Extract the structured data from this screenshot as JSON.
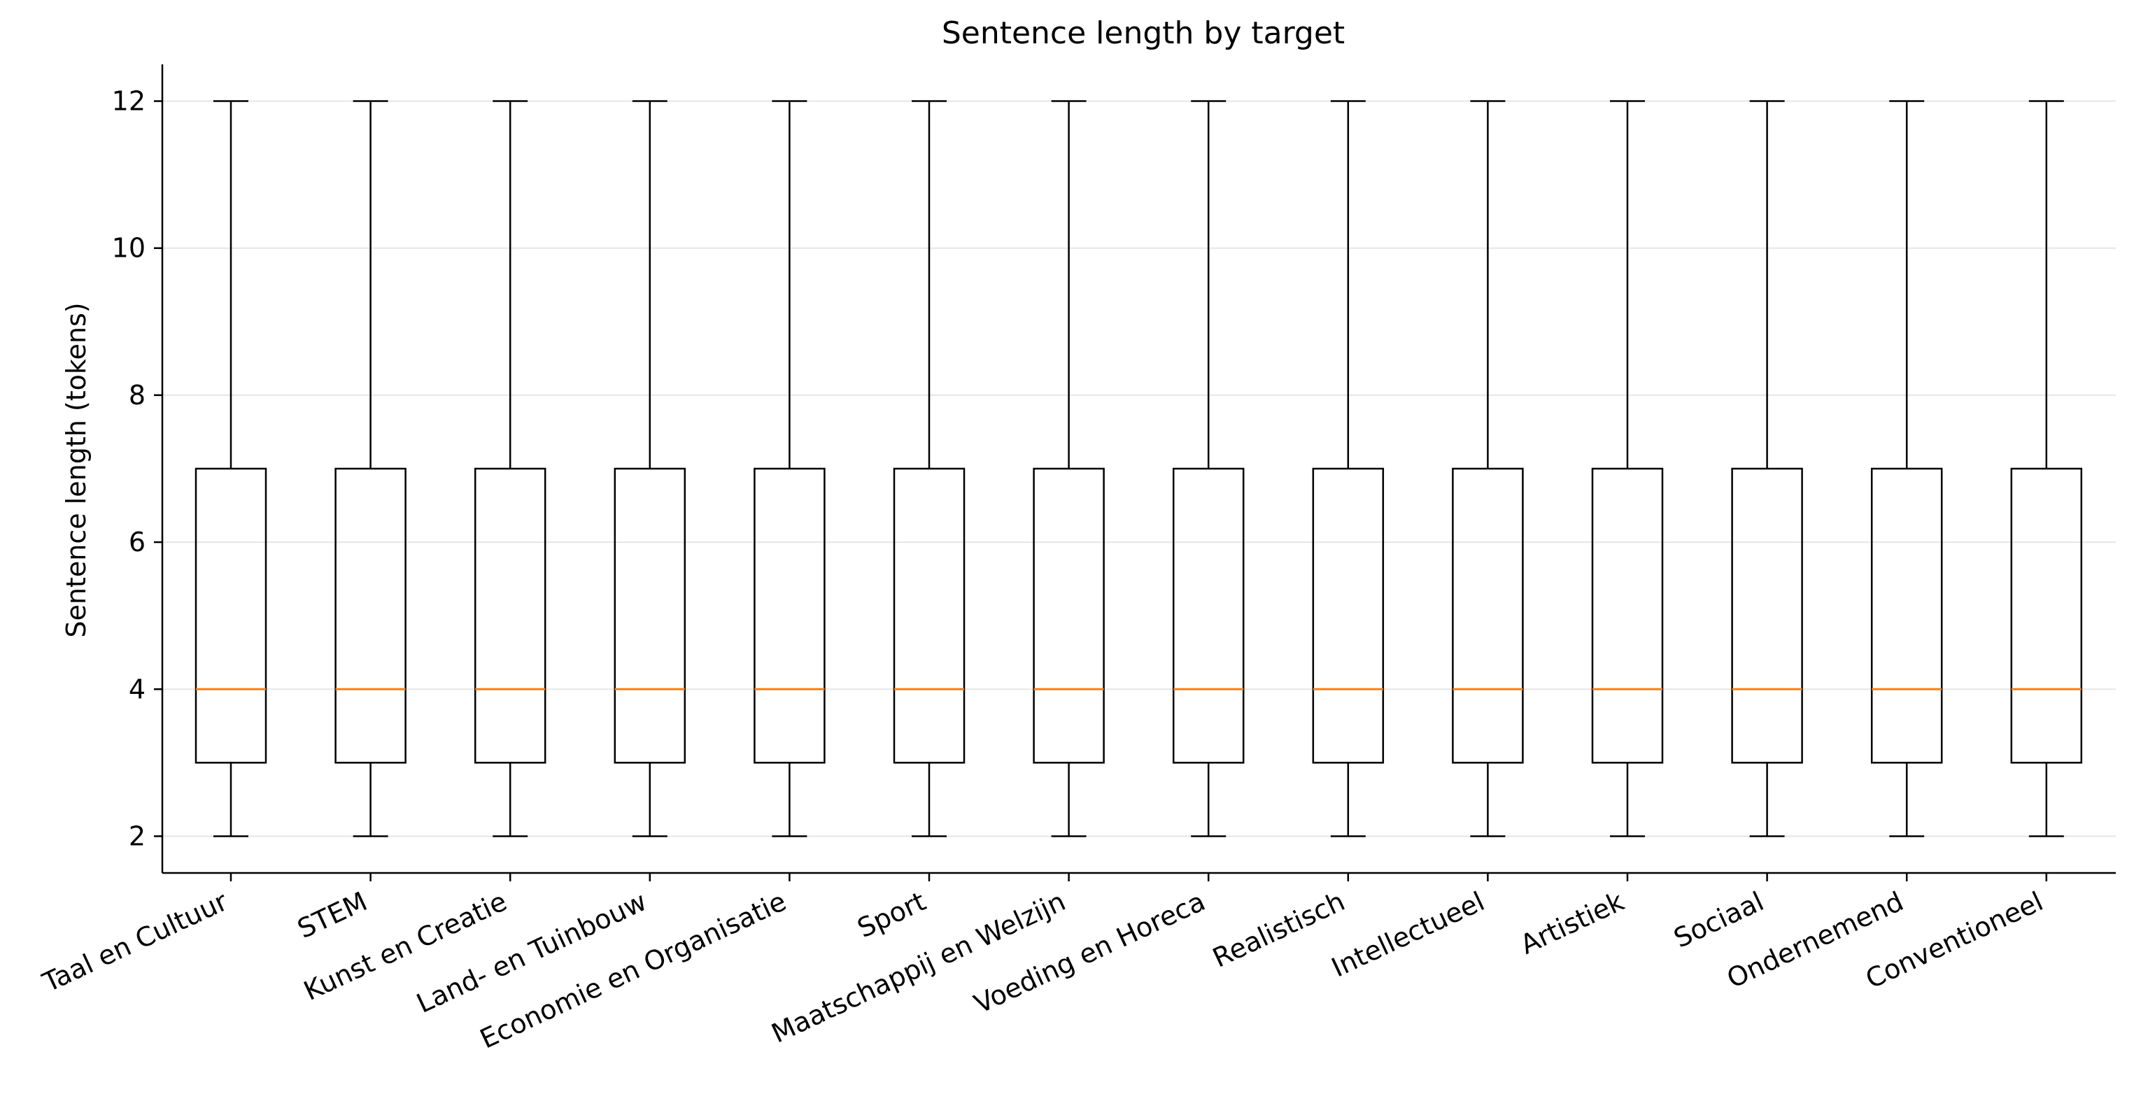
{
  "chart_data": {
    "type": "box",
    "title": "Sentence length by target",
    "xlabel": "",
    "ylabel": "Sentence length (tokens)",
    "ylim": [
      1.5,
      12.5
    ],
    "yticks": [
      2,
      4,
      6,
      8,
      10,
      12
    ],
    "grid": "horizontal",
    "categories": [
      "Taal en Cultuur",
      "STEM",
      "Kunst en Creatie",
      "Land- en Tuinbouw",
      "Economie en Organisatie",
      "Sport",
      "Maatschappij en Welzijn",
      "Voeding en Horeca",
      "Realistisch",
      "Intellectueel",
      "Artistiek",
      "Sociaal",
      "Ondernemend",
      "Conventioneel"
    ],
    "boxes": [
      {
        "whisker_low": 2,
        "q1": 3,
        "median": 4,
        "q3": 7,
        "whisker_high": 12
      },
      {
        "whisker_low": 2,
        "q1": 3,
        "median": 4,
        "q3": 7,
        "whisker_high": 12
      },
      {
        "whisker_low": 2,
        "q1": 3,
        "median": 4,
        "q3": 7,
        "whisker_high": 12
      },
      {
        "whisker_low": 2,
        "q1": 3,
        "median": 4,
        "q3": 7,
        "whisker_high": 12
      },
      {
        "whisker_low": 2,
        "q1": 3,
        "median": 4,
        "q3": 7,
        "whisker_high": 12
      },
      {
        "whisker_low": 2,
        "q1": 3,
        "median": 4,
        "q3": 7,
        "whisker_high": 12
      },
      {
        "whisker_low": 2,
        "q1": 3,
        "median": 4,
        "q3": 7,
        "whisker_high": 12
      },
      {
        "whisker_low": 2,
        "q1": 3,
        "median": 4,
        "q3": 7,
        "whisker_high": 12
      },
      {
        "whisker_low": 2,
        "q1": 3,
        "median": 4,
        "q3": 7,
        "whisker_high": 12
      },
      {
        "whisker_low": 2,
        "q1": 3,
        "median": 4,
        "q3": 7,
        "whisker_high": 12
      },
      {
        "whisker_low": 2,
        "q1": 3,
        "median": 4,
        "q3": 7,
        "whisker_high": 12
      },
      {
        "whisker_low": 2,
        "q1": 3,
        "median": 4,
        "q3": 7,
        "whisker_high": 12
      },
      {
        "whisker_low": 2,
        "q1": 3,
        "median": 4,
        "q3": 7,
        "whisker_high": 12
      },
      {
        "whisker_low": 2,
        "q1": 3,
        "median": 4,
        "q3": 7,
        "whisker_high": 12
      }
    ],
    "colors": {
      "box": "#000000",
      "median": "#ff7f0e",
      "grid": "#e6e6e6",
      "axis": "#000000"
    }
  }
}
